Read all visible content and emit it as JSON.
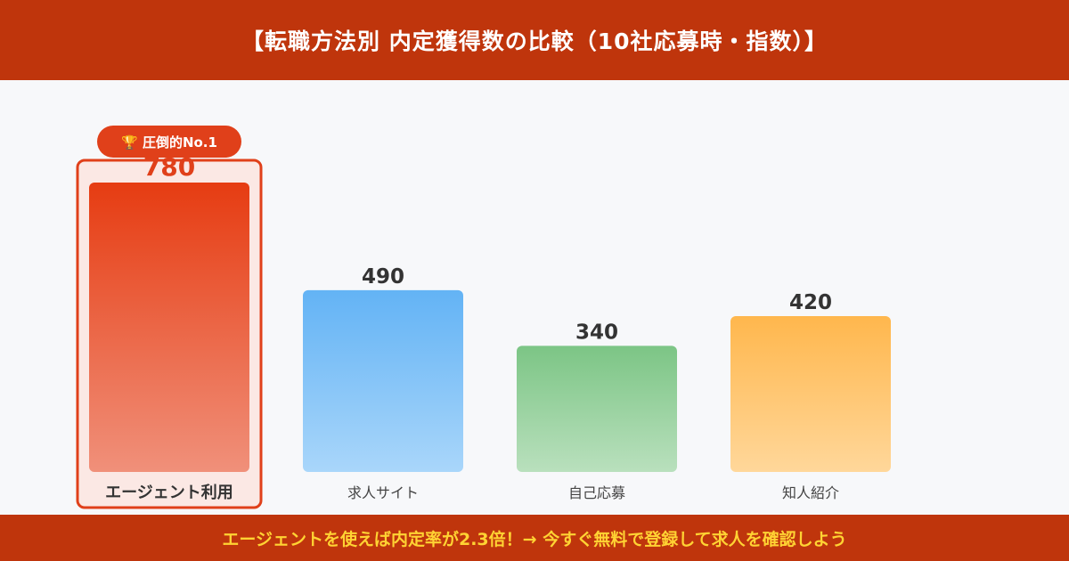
{
  "header": {
    "title": "【転職方法別 内定獲得数の比較（10社応募時・指数）】"
  },
  "chart_data": {
    "type": "bar",
    "title": "【転職方法別 内定獲得数の比較（10社応募時・指数）】",
    "categories": [
      "エージェント利用",
      "求人サイト",
      "自己応募",
      "知人紹介"
    ],
    "values": [
      780,
      490,
      340,
      420
    ],
    "highlight_index": 0,
    "badge": "🏆 圧倒的No.1",
    "colors": [
      [
        "#e63c12",
        "#f0907a"
      ],
      [
        "#63b3f5",
        "#a9d6fa"
      ],
      [
        "#7cc585",
        "#b9e0bd"
      ],
      [
        "#ffb74d",
        "#ffd79a"
      ]
    ],
    "grid": false,
    "legend": "none"
  },
  "footer": {
    "cta": "エージェントを使えば内定率が2.3倍！→ 今すぐ無料で登録して求人を確認しよう"
  }
}
